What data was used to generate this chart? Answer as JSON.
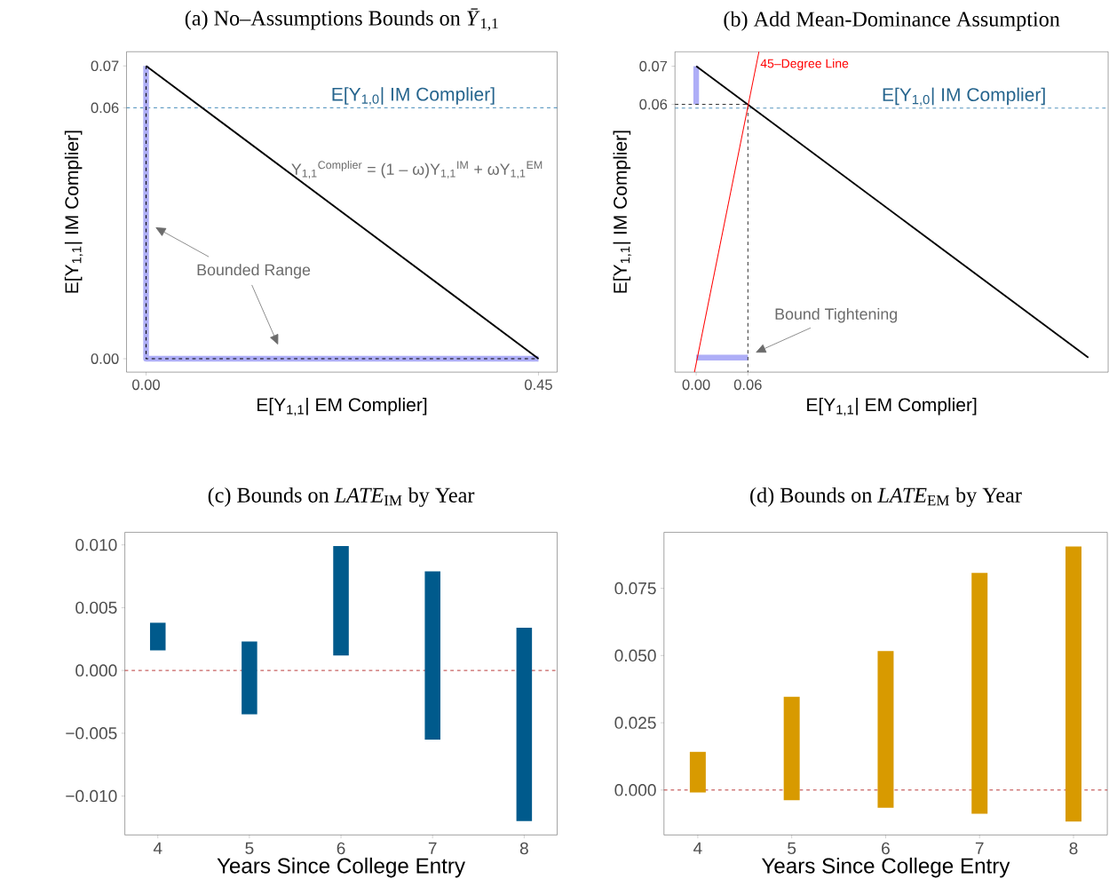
{
  "chart_data": [
    {
      "type": "line",
      "title": "(a) No–Assumptions Bounds on *Ȳ*$_{1,1}$",
      "xlabel": "E[Y$_{1,1}$| EM Complier]",
      "ylabel": "E[Y$_{1,1}$| IM Complier]",
      "xlim": [
        -0.0224,
        0.4714
      ],
      "ylim": [
        -0.0032,
        0.0734
      ],
      "xticks": [
        {
          "value": 0,
          "label": "0.00"
        },
        0.45
      ],
      "yticks": [
        {
          "value": 0,
          "label": "0.00"
        },
        0.06,
        0.07
      ],
      "series": [
        {
          "color": "#aeaef7",
          "x": [
            0,
            0,
            0.45
          ],
          "values": [
            0.07,
            0,
            0
          ]
        },
        {
          "color": "#000000",
          "line_style": "dashed",
          "x": [
            0,
            0,
            0.45
          ],
          "values": [
            0.07,
            0,
            0
          ]
        },
        {
          "color": "#000000",
          "x": [
            0,
            0.45
          ],
          "values": [
            0.07,
            0
          ]
        }
      ],
      "ref_lines": [
        {
          "axis": "y",
          "value": 0.06,
          "label": "E[Y$_{1,0}$| IM Complier]",
          "color": "#2e7db0",
          "line_style": "dashed"
        }
      ],
      "annotations": [
        "Y$_{1,1}$$^{Complier}$ = (1 – ω)Y$_{1,1}$$^{IM}$ + ωY$_{1,1}$$^{EM}$",
        "Bounded Range"
      ]
    },
    {
      "type": "line",
      "title": "(b) Add Mean-Dominance Assumption",
      "xlabel": "E[Y$_{1,1}$| EM Complier]",
      "ylabel": "E[Y$_{1,1}$| IM Complier]",
      "xlim": [
        -0.0246,
        0.478
      ],
      "ylim": [
        -0.0102,
        0.0738
      ],
      "xticks": [
        {
          "value": 0,
          "label": "0.00"
        },
        0.06
      ],
      "yticks": [
        0.06,
        0.07
      ],
      "series": [
        {
          "color": "#aeaef7",
          "x": [
            0,
            0
          ],
          "values": [
            0.07,
            0.06
          ]
        },
        {
          "color": "#aeaef7",
          "x": [
            0,
            0.06
          ],
          "values": [
            -0.0064,
            -0.0064
          ]
        },
        {
          "color": "#333333",
          "line_style": "dashed",
          "x": [
            -0.0246,
            0.06,
            0.06
          ],
          "values": [
            0.06,
            0.06,
            -0.0102
          ]
        },
        {
          "color": "#000000",
          "x": [
            0,
            0.455
          ],
          "values": [
            0.07,
            -0.0064
          ]
        },
        {
          "name": "45–Degree Line",
          "color": "#ff0000",
          "x": [
            -0.002,
            0.0728
          ],
          "values": [
            -0.0102,
            0.0738
          ]
        }
      ],
      "ref_lines": [
        {
          "axis": "y",
          "value": 0.059,
          "label": "E[Y$_{1,0}$| IM Complier]",
          "color": "#2e7db0",
          "line_style": "dashed"
        }
      ],
      "annotations": [
        "Bound Tightening"
      ]
    },
    {
      "type": "bar",
      "title": "(c) Bounds on *LATE*$_{IM}$ by Year",
      "xlabel": "Years Since College Entry",
      "categories": [
        "4",
        "5",
        "6",
        "7",
        "8"
      ],
      "color": "#005a8c",
      "base": [
        0.0016,
        -0.0035,
        0.0012,
        -0.0055,
        -0.012
      ],
      "values": [
        0.0022,
        0.0058,
        0.0087,
        0.0134,
        0.0154
      ],
      "ylim": [
        -0.0131,
        0.011
      ],
      "yticks": [
        {
          "value": -0.01,
          "label": "−0.010"
        },
        {
          "value": -0.005,
          "label": "−0.005"
        },
        {
          "value": 0,
          "label": "0.000"
        },
        0.005,
        {
          "value": 0.01,
          "label": "0.010"
        }
      ],
      "ref_lines": [
        {
          "axis": "y",
          "value": 0,
          "color": "#b22222",
          "line_style": "dashed"
        }
      ]
    },
    {
      "type": "bar",
      "title": "(d) Bounds on *LATE*$_{EM}$ by Year",
      "xlabel": "Years Since College Entry",
      "categories": [
        "4",
        "5",
        "6",
        "7",
        "8"
      ],
      "color": "#d89a00",
      "base": [
        -0.0009,
        -0.0038,
        -0.0066,
        -0.0088,
        -0.0117
      ],
      "values": [
        0.0151,
        0.0385,
        0.0583,
        0.0895,
        0.1022
      ],
      "ylim": [
        -0.0167,
        0.0958
      ],
      "yticks": [
        {
          "value": 0,
          "label": "0.000"
        },
        0.025,
        {
          "value": 0.05,
          "label": "0.050"
        },
        0.075
      ],
      "ref_lines": [
        {
          "axis": "y",
          "value": 0,
          "color": "#b22222",
          "line_style": "dashed"
        }
      ]
    }
  ]
}
